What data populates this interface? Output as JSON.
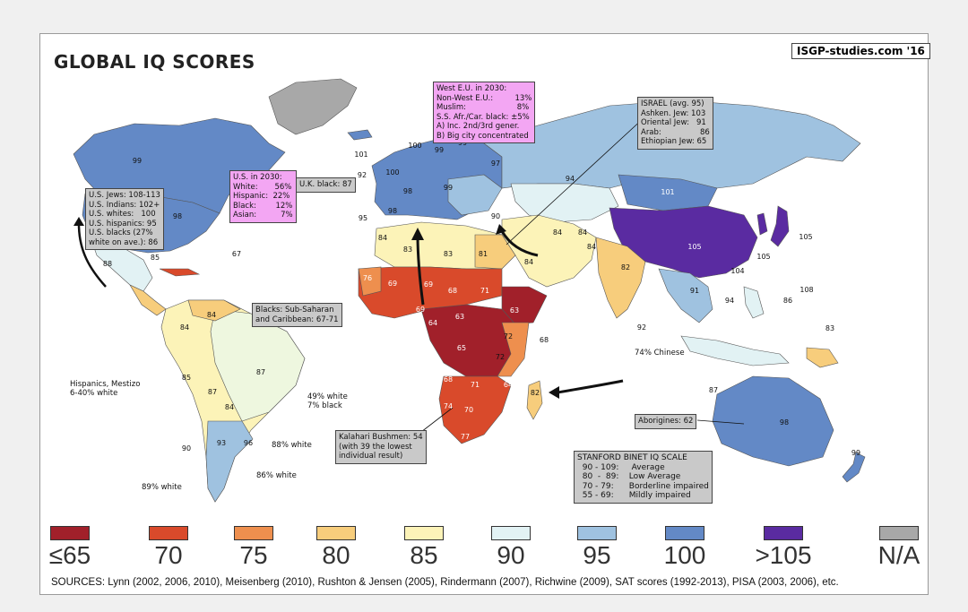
{
  "header": {
    "title": "GLOBAL IQ SCORES",
    "brand": "ISGP-studies.com '16"
  },
  "colors": {
    "le65": "#a1202a",
    "c70": "#d94a2b",
    "c75": "#ee8f4e",
    "c80": "#f7cd7c",
    "c85": "#fcf3b8",
    "c90": "#e2f2f4",
    "c95": "#9fc2e0",
    "c100": "#6389c6",
    "gt105": "#5a2ba1",
    "na": "#a8a8a8",
    "ocean": "#ffffff"
  },
  "notes": {
    "west_eu": "West E.U. in 2030:\nNon-West E.U.:         13%\nMuslim:                     8%\nS.S. Afr./Car. black: ±5%\nA) Inc. 2nd/3rd gener.\nB) Big city concentrated",
    "israel": "ISRAEL (avg. 95)\nAshken. Jew: 103\nOriental Jew:   91\nArab:                86\nEthiopian Jew: 65",
    "us2030": "U.S. in 2030:\nWhite:       56%\nHispanic:  22%\nBlack:        12%\nAsian:          7%",
    "uk_black": "U.K. black: 87",
    "us_groups": "U.S. Jews: 108-113\nU.S. Indians: 102+\nU.S. whites:   100\nU.S. hispanics: 95\nU.S. blacks (27%\nwhite on ave.): 86",
    "blacks_carib": "Blacks: Sub-Saharan\nand Caribbean: 67-71",
    "hispanics": "Hispanics, Mestizo\n6-40% white",
    "kalahari": "Kalahari Bushmen: 54\n(with 39 the lowest\nindividual result)",
    "aborigines": "Aborigines: 62",
    "chinese": "74% Chinese",
    "brazil_white": "49% white\n7% black",
    "arg_white": "88% white",
    "chile_white": "86% white",
    "peru_white": "89% white",
    "stanford": "STANFORD BINET IQ SCALE\n  90 - 109:     Average\n  80  -  89:    Low Average\n  70 - 79:      Borderline impaired\n  55 - 69:      Mildly impaired"
  },
  "legend": [
    {
      "label": "≤65",
      "color": "#a1202a"
    },
    {
      "label": "70",
      "color": "#d94a2b"
    },
    {
      "label": "75",
      "color": "#ee8f4e"
    },
    {
      "label": "80",
      "color": "#f7cd7c"
    },
    {
      "label": "85",
      "color": "#fcf3b8"
    },
    {
      "label": "90",
      "color": "#e2f2f4"
    },
    {
      "label": "95",
      "color": "#9fc2e0"
    },
    {
      "label": "100",
      "color": "#6389c6"
    },
    {
      "label": ">105",
      "color": "#5a2ba1"
    },
    {
      "label": "N/A",
      "color": "#a8a8a8"
    }
  ],
  "sources": "SOURCES: Lynn (2002, 2006, 2010), Meisenberg (2010), Rushton & Jensen (2005), Rindermann (2007), Richwine (2009), SAT scores (1992-2013), PISA (2003, 2006), etc.",
  "map_values": {
    "canada": "99",
    "greenland": "",
    "usa": "98",
    "mexico": "88",
    "iceland": "101",
    "uk": "100",
    "ireland": "92",
    "norway": "100",
    "sweden": "99",
    "finland": "99",
    "russia": "97",
    "france": "98",
    "spain": "98",
    "portugal": "95",
    "italy": "97",
    "germany": "99",
    "kazakhstan": "94",
    "mongolia": "101",
    "china": "105",
    "korea": "105",
    "japan": "105",
    "taiwan": "104",
    "hongkong": "108",
    "iran": "84",
    "saudi": "84",
    "india": "82",
    "pakistan": "84",
    "afghanistan": "84",
    "turkey": "90",
    "egypt": "81",
    "libya": "83",
    "algeria": "83",
    "morocco": "84",
    "mauritania": "76",
    "mali": "69",
    "niger": "69",
    "chad": "68",
    "sudan": "71",
    "ethiopia": "63",
    "somalia": "68",
    "nigeria": "69",
    "cameroon": "64",
    "car": "63",
    "drc": "65",
    "kenya": "72",
    "tanzania": "72",
    "angola": "68",
    "zambia": "71",
    "namibia": "74",
    "botswana": "70",
    "southafrica": "77",
    "mozambique": "64",
    "madagascar": "82",
    "brazil": "87",
    "argentina": "93",
    "chile": "90",
    "peru": "85",
    "colombia": "84",
    "venezuela": "84",
    "bolivia": "87",
    "australia": "98",
    "newzealand": "99",
    "indonesia": "87",
    "png": "83",
    "philippines": "86",
    "thailand": "91",
    "vietnam": "94",
    "malaysia": "92",
    "uruguay": "96",
    "paraguay": "84",
    "cuba": "85",
    "haiti": "67"
  }
}
